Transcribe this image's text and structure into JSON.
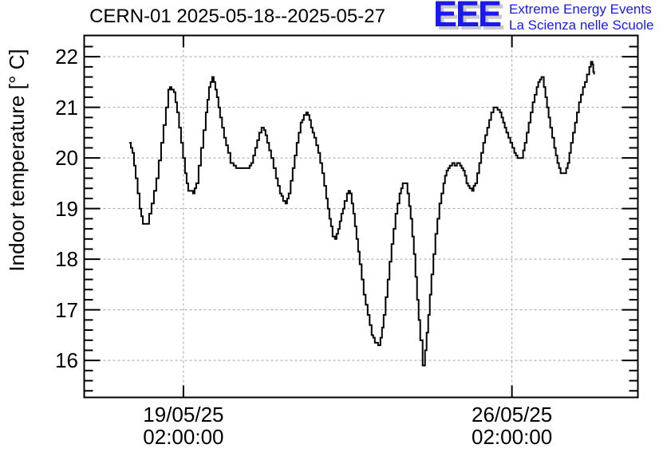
{
  "header": {
    "title": "CERN-01 2025-05-18--2025-05-27",
    "logo": {
      "acronym": "EEE",
      "line1": "Extreme Energy Events",
      "line2": "La Scienza nelle Scuole",
      "color": "#1a1aee",
      "shadow_color": "#c9c9c9"
    }
  },
  "chart_data": {
    "type": "line",
    "title": "CERN-01 2025-05-18--2025-05-27",
    "xlabel": "",
    "ylabel": "Indoor temperature [° C]",
    "x_unit": "days relative to 2025-05-19 02:00:00",
    "x_range": [
      -2.115,
      9.684
    ],
    "y_range": [
      15.27,
      22.42
    ],
    "y_major_ticks": [
      16,
      17,
      18,
      19,
      20,
      21,
      22
    ],
    "y_minor_step": 0.2,
    "x_major_ticks": [
      {
        "day": 0,
        "date": "19/05/25",
        "time": "02:00:00"
      },
      {
        "day": 7,
        "date": "26/05/25",
        "time": "02:00:00"
      }
    ],
    "grid": "dashed",
    "legend": "none",
    "line_color": "#000000",
    "grid_color": "#a2a2a2",
    "frame_color": "#000000",
    "step_quantum_c": 0.05,
    "series": [
      {
        "name": "indoor temperature",
        "points": [
          [
            -1.155,
            20.3
          ],
          [
            -1.087,
            20.1
          ],
          [
            -1.019,
            19.6
          ],
          [
            -0.934,
            19.0
          ],
          [
            -0.866,
            18.7
          ],
          [
            -0.781,
            18.7
          ],
          [
            -0.68,
            19.1
          ],
          [
            -0.578,
            19.6
          ],
          [
            -0.476,
            20.3
          ],
          [
            -0.374,
            21.0
          ],
          [
            -0.323,
            21.35
          ],
          [
            -0.289,
            21.4
          ],
          [
            -0.255,
            21.35
          ],
          [
            -0.204,
            21.3
          ],
          [
            -0.136,
            20.9
          ],
          [
            -0.051,
            20.3
          ],
          [
            0.034,
            19.7
          ],
          [
            0.102,
            19.35
          ],
          [
            0.204,
            19.3
          ],
          [
            0.272,
            19.5
          ],
          [
            0.374,
            20.2
          ],
          [
            0.476,
            20.9
          ],
          [
            0.544,
            21.4
          ],
          [
            0.578,
            21.5
          ],
          [
            0.612,
            21.6
          ],
          [
            0.646,
            21.5
          ],
          [
            0.713,
            21.2
          ],
          [
            0.781,
            20.8
          ],
          [
            0.866,
            20.4
          ],
          [
            0.951,
            20.1
          ],
          [
            1.002,
            19.9
          ],
          [
            1.07,
            19.85
          ],
          [
            1.121,
            19.8
          ],
          [
            1.274,
            19.8
          ],
          [
            1.376,
            19.8
          ],
          [
            1.444,
            19.9
          ],
          [
            1.529,
            20.2
          ],
          [
            1.614,
            20.5
          ],
          [
            1.665,
            20.6
          ],
          [
            1.716,
            20.55
          ],
          [
            1.784,
            20.3
          ],
          [
            1.869,
            20.0
          ],
          [
            1.971,
            19.6
          ],
          [
            2.056,
            19.3
          ],
          [
            2.124,
            19.15
          ],
          [
            2.175,
            19.1
          ],
          [
            2.242,
            19.3
          ],
          [
            2.327,
            19.8
          ],
          [
            2.412,
            20.3
          ],
          [
            2.497,
            20.7
          ],
          [
            2.565,
            20.85
          ],
          [
            2.616,
            20.9
          ],
          [
            2.65,
            20.85
          ],
          [
            2.718,
            20.6
          ],
          [
            2.786,
            20.4
          ],
          [
            2.871,
            20.1
          ],
          [
            2.956,
            19.7
          ],
          [
            3.041,
            19.2
          ],
          [
            3.109,
            18.8
          ],
          [
            3.177,
            18.45
          ],
          [
            3.228,
            18.4
          ],
          [
            3.296,
            18.6
          ],
          [
            3.364,
            18.9
          ],
          [
            3.432,
            19.15
          ],
          [
            3.483,
            19.3
          ],
          [
            3.517,
            19.35
          ],
          [
            3.551,
            19.3
          ],
          [
            3.619,
            18.9
          ],
          [
            3.687,
            18.4
          ],
          [
            3.755,
            17.9
          ],
          [
            3.84,
            17.3
          ],
          [
            3.925,
            16.9
          ],
          [
            4.01,
            16.5
          ],
          [
            4.078,
            16.35
          ],
          [
            4.146,
            16.3
          ],
          [
            4.197,
            16.45
          ],
          [
            4.265,
            16.9
          ],
          [
            4.35,
            17.6
          ],
          [
            4.434,
            18.3
          ],
          [
            4.519,
            18.9
          ],
          [
            4.604,
            19.3
          ],
          [
            4.672,
            19.5
          ],
          [
            4.723,
            19.5
          ],
          [
            4.774,
            19.3
          ],
          [
            4.842,
            18.8
          ],
          [
            4.91,
            18.1
          ],
          [
            4.978,
            17.2
          ],
          [
            5.046,
            16.4
          ],
          [
            5.097,
            15.9
          ],
          [
            5.148,
            16.2
          ],
          [
            5.216,
            16.9
          ],
          [
            5.284,
            17.7
          ],
          [
            5.369,
            18.5
          ],
          [
            5.454,
            19.1
          ],
          [
            5.539,
            19.5
          ],
          [
            5.607,
            19.75
          ],
          [
            5.675,
            19.85
          ],
          [
            5.726,
            19.9
          ],
          [
            5.777,
            19.85
          ],
          [
            5.828,
            19.9
          ],
          [
            5.895,
            19.85
          ],
          [
            5.963,
            19.75
          ],
          [
            6.031,
            19.5
          ],
          [
            6.099,
            19.4
          ],
          [
            6.15,
            19.35
          ],
          [
            6.218,
            19.5
          ],
          [
            6.303,
            19.9
          ],
          [
            6.388,
            20.3
          ],
          [
            6.473,
            20.6
          ],
          [
            6.558,
            20.9
          ],
          [
            6.609,
            21.0
          ],
          [
            6.66,
            21.0
          ],
          [
            6.694,
            20.95
          ],
          [
            6.745,
            20.9
          ],
          [
            6.813,
            20.7
          ],
          [
            6.881,
            20.5
          ],
          [
            6.966,
            20.3
          ],
          [
            7.051,
            20.1
          ],
          [
            7.119,
            20.0
          ],
          [
            7.204,
            20.0
          ],
          [
            7.272,
            20.3
          ],
          [
            7.357,
            20.7
          ],
          [
            7.442,
            21.1
          ],
          [
            7.527,
            21.4
          ],
          [
            7.595,
            21.55
          ],
          [
            7.629,
            21.6
          ],
          [
            7.68,
            21.4
          ],
          [
            7.748,
            21.0
          ],
          [
            7.816,
            20.6
          ],
          [
            7.901,
            20.2
          ],
          [
            7.969,
            19.9
          ],
          [
            8.037,
            19.7
          ],
          [
            8.122,
            19.7
          ],
          [
            8.19,
            19.9
          ],
          [
            8.258,
            20.3
          ],
          [
            8.343,
            20.7
          ],
          [
            8.428,
            21.1
          ],
          [
            8.513,
            21.4
          ],
          [
            8.598,
            21.65
          ],
          [
            8.649,
            21.8
          ],
          [
            8.683,
            21.9
          ],
          [
            8.717,
            21.85
          ],
          [
            8.734,
            21.7
          ],
          [
            8.751,
            21.65
          ]
        ]
      }
    ]
  }
}
